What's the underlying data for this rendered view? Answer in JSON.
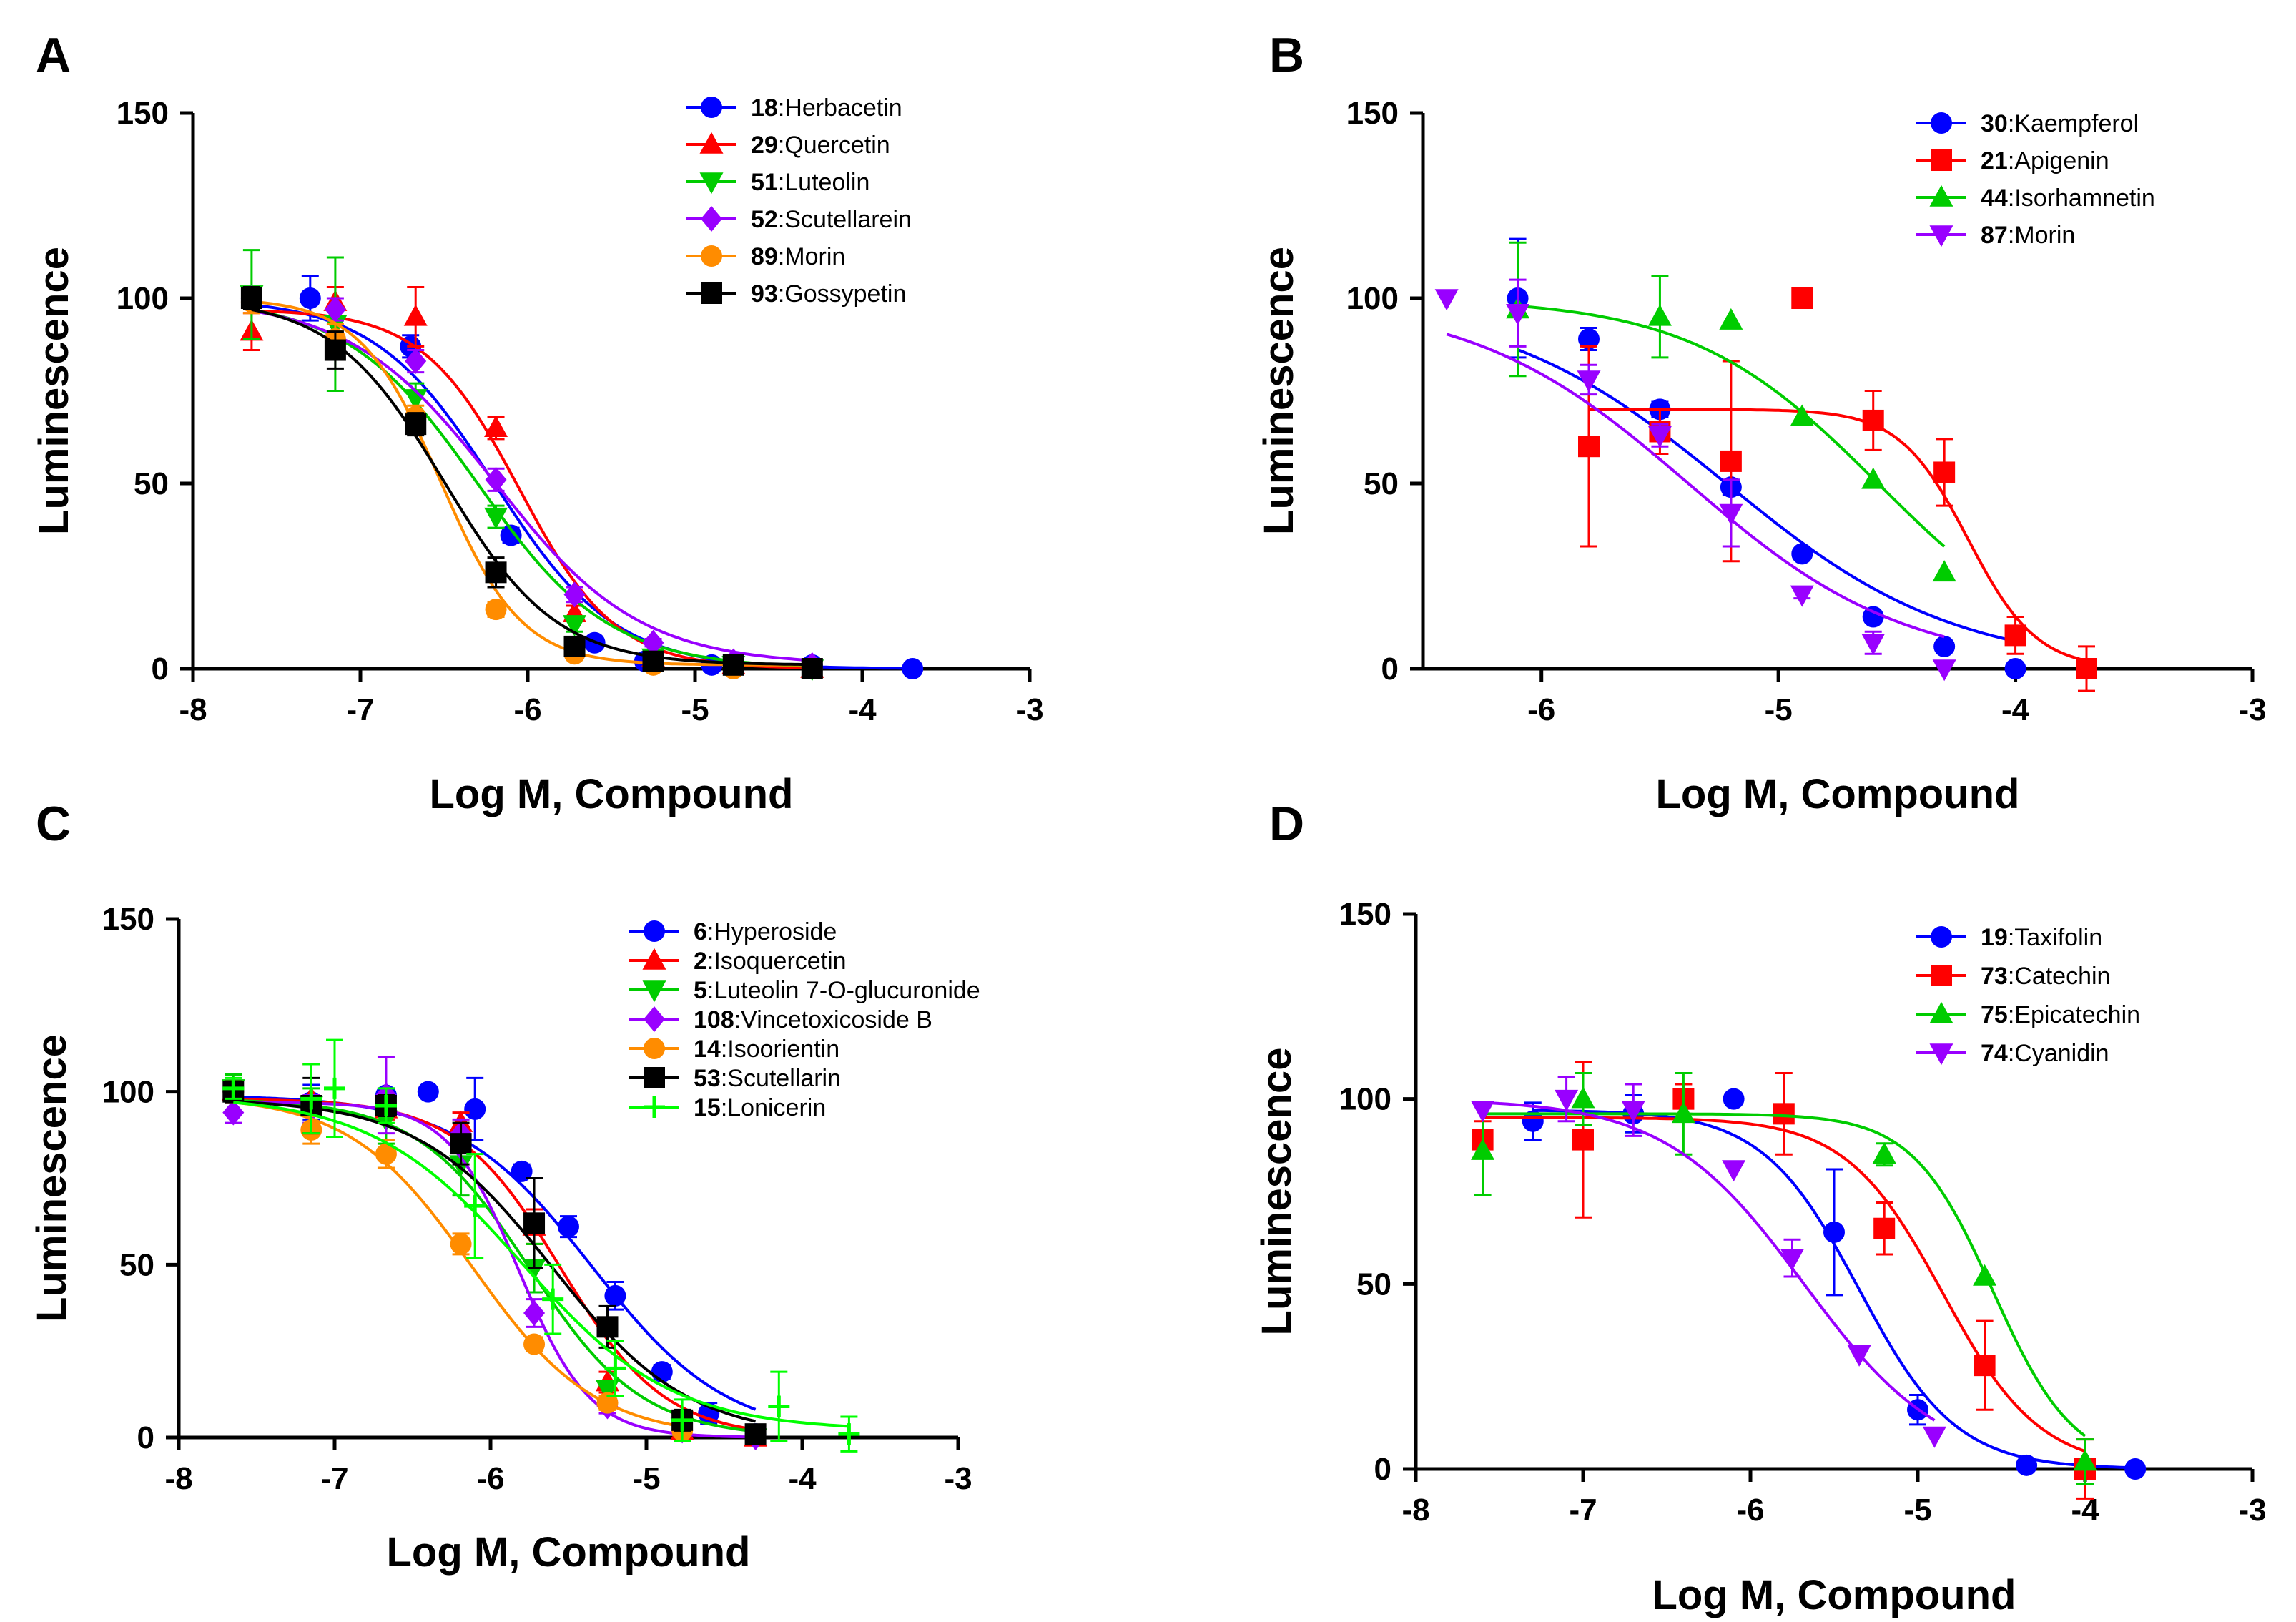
{
  "figure": {
    "panels": [
      "A",
      "B",
      "C",
      "D"
    ]
  },
  "chart_data": [
    {
      "panel": "A",
      "type": "line",
      "xlabel": "Log M, Compound",
      "ylabel": "Luminescence",
      "xlim": [
        -8,
        -3
      ],
      "ylim": [
        0,
        150
      ],
      "xticks": [
        "-8",
        "-7",
        "-6",
        "-5",
        "-4",
        "-3"
      ],
      "yticks": [
        "0",
        "50",
        "100",
        "150"
      ],
      "legend_position": "top-right",
      "series": [
        {
          "id": "18",
          "name": "Herbacetin",
          "color": "#0000ff",
          "marker": "circle",
          "x": [
            -7.65,
            -7.3,
            -6.7,
            -6.1,
            -5.6,
            -5.3,
            -4.9,
            -4.3,
            -3.7
          ],
          "y": [
            100,
            100,
            87,
            36,
            7,
            2,
            1,
            1,
            0
          ],
          "err": [
            0,
            6,
            3,
            2,
            1,
            1,
            1,
            1,
            0
          ],
          "fit": {
            "top": 100,
            "bottom": 0,
            "logec50": -6.2,
            "hill": 1.2
          }
        },
        {
          "id": "29",
          "name": "Quercetin",
          "color": "#ff0000",
          "marker": "triangle-up",
          "x": [
            -7.65,
            -7.15,
            -6.67,
            -6.19,
            -5.72,
            -5.25,
            -4.77,
            -4.3
          ],
          "y": [
            91,
            99,
            95,
            65,
            15,
            3,
            1,
            0
          ],
          "err": [
            5,
            4,
            8,
            3,
            2,
            1,
            1,
            0
          ],
          "fit": {
            "top": 97,
            "bottom": 0,
            "logec50": -6.05,
            "hill": 1.5
          }
        },
        {
          "id": "51",
          "name": "Luteolin",
          "color": "#00cc00",
          "marker": "triangle-down",
          "x": [
            -7.65,
            -7.15,
            -6.67,
            -6.19,
            -5.72,
            -5.25,
            -4.77,
            -4.3
          ],
          "y": [
            101,
            93,
            73,
            41,
            12,
            3,
            1,
            0
          ],
          "err": [
            12,
            18,
            4,
            3,
            2,
            1,
            1,
            0
          ],
          "fit": {
            "top": 100,
            "bottom": 0,
            "logec50": -6.3,
            "hill": 1.1
          }
        },
        {
          "id": "52",
          "name": "Scutellarein",
          "color": "#9900ff",
          "marker": "diamond",
          "x": [
            -7.65,
            -7.15,
            -6.67,
            -6.19,
            -5.72,
            -5.25,
            -4.77,
            -4.3
          ],
          "y": [
            100,
            97,
            83,
            51,
            20,
            7,
            2,
            1
          ],
          "err": [
            2,
            3,
            3,
            3,
            2,
            1,
            1,
            0
          ],
          "fit": {
            "top": 100,
            "bottom": 1,
            "logec50": -6.2,
            "hill": 1.0
          }
        },
        {
          "id": "89",
          "name": "Morin",
          "color": "#ff8c00",
          "marker": "circle",
          "x": [
            -7.65,
            -7.15,
            -6.67,
            -6.19,
            -5.72,
            -5.25,
            -4.77,
            -4.3
          ],
          "y": [
            99,
            89,
            68,
            16,
            4,
            1,
            0,
            0
          ],
          "err": [
            3,
            4,
            3,
            2,
            1,
            0,
            0,
            0
          ],
          "fit": {
            "top": 100,
            "bottom": 1,
            "logec50": -6.52,
            "hill": 1.8
          }
        },
        {
          "id": "93",
          "name": "Gossypetin",
          "color": "#000000",
          "marker": "square",
          "x": [
            -7.65,
            -7.15,
            -6.67,
            -6.19,
            -5.72,
            -5.25,
            -4.77,
            -4.3
          ],
          "y": [
            100,
            86,
            66,
            26,
            6,
            2,
            1,
            0
          ],
          "err": [
            3,
            5,
            3,
            4,
            2,
            1,
            1,
            0
          ],
          "fit": {
            "top": 100,
            "bottom": 1,
            "logec50": -6.5,
            "hill": 1.3
          }
        }
      ]
    },
    {
      "panel": "B",
      "type": "line",
      "xlabel": "Log M, Compound",
      "ylabel": "Luminescence",
      "xlim": [
        -6.5,
        -3
      ],
      "ylim": [
        0,
        150
      ],
      "xticks": [
        "-6",
        "-5",
        "-4",
        "-3"
      ],
      "yticks": [
        "0",
        "50",
        "100",
        "150"
      ],
      "legend_position": "top-right",
      "series": [
        {
          "id": "30",
          "name": "Kaempferol",
          "color": "#0000ff",
          "marker": "circle",
          "x": [
            -6.1,
            -5.8,
            -5.5,
            -5.2,
            -4.9,
            -4.6,
            -4.3,
            -4.0
          ],
          "y": [
            100,
            89,
            70,
            49,
            31,
            14,
            6,
            0
          ],
          "err": [
            16,
            3,
            2,
            2,
            1,
            1,
            1,
            0
          ],
          "fit": {
            "top": 100,
            "bottom": 0,
            "logec50": -5.22,
            "hill": 0.9
          }
        },
        {
          "id": "21",
          "name": "Apigenin",
          "color": "#ff0000",
          "marker": "square",
          "x": [
            -5.8,
            -5.5,
            -5.2,
            -4.9,
            -4.6,
            -4.3,
            -4.0,
            -3.7
          ],
          "y": [
            60,
            64,
            56,
            100,
            67,
            53,
            9,
            0
          ],
          "err": [
            27,
            6,
            27,
            0,
            8,
            9,
            5,
            6
          ],
          "fit": {
            "top": 70,
            "bottom": 0,
            "logec50": -4.2,
            "hill": 3.0
          }
        },
        {
          "id": "44",
          "name": "Isorhamnetin",
          "color": "#00cc00",
          "marker": "triangle-up",
          "x": [
            -6.1,
            -5.5,
            -5.2,
            -4.9,
            -4.6,
            -4.3
          ],
          "y": [
            97,
            95,
            94,
            68,
            51,
            26
          ],
          "err": [
            18,
            11,
            0,
            0,
            0,
            0
          ],
          "fit": {
            "top": 100,
            "bottom": 0,
            "logec50": -4.58,
            "hill": 1.1
          }
        },
        {
          "id": "87",
          "name": "Morin",
          "color": "#9900ff",
          "marker": "triangle-down",
          "x": [
            -6.4,
            -6.1,
            -5.8,
            -5.5,
            -5.2,
            -4.9,
            -4.6,
            -4.3
          ],
          "y": [
            100,
            96,
            78,
            63,
            42,
            20,
            7,
            0
          ],
          "err": [
            0,
            9,
            4,
            3,
            9,
            1,
            3,
            0
          ],
          "fit": {
            "top": 100,
            "bottom": 0,
            "logec50": -5.38,
            "hill": 0.95
          }
        }
      ]
    },
    {
      "panel": "C",
      "type": "line",
      "xlabel": "Log M, Compound",
      "ylabel": "Luminescence",
      "xlim": [
        -8,
        -3
      ],
      "ylim": [
        0,
        150
      ],
      "xticks": [
        "-8",
        "-7",
        "-6",
        "-5",
        "-4",
        "-3"
      ],
      "yticks": [
        "0",
        "50",
        "100",
        "150"
      ],
      "legend_position": "top-right",
      "series": [
        {
          "id": "6",
          "name": "Hyperoside",
          "color": "#0000ff",
          "marker": "circle",
          "x": [
            -7.65,
            -7.15,
            -6.67,
            -6.4,
            -6.1,
            -5.8,
            -5.5,
            -5.2,
            -4.9,
            -4.6,
            -4.3
          ],
          "y": [
            100,
            97,
            99,
            100,
            95,
            77,
            61,
            41,
            19,
            7,
            1
          ],
          "err": [
            0,
            5,
            2,
            0,
            9,
            2,
            3,
            4,
            2,
            3,
            2
          ],
          "fit": {
            "top": 99,
            "bottom": 0,
            "logec50": -5.35,
            "hill": 1.0
          }
        },
        {
          "id": "2",
          "name": "Isoquercetin",
          "color": "#ff0000",
          "marker": "triangle-up",
          "x": [
            -7.65,
            -7.15,
            -6.67,
            -6.19,
            -5.72,
            -5.25,
            -4.77,
            -4.3
          ],
          "y": [
            100,
            98,
            95,
            91,
            61,
            16,
            2,
            0
          ],
          "err": [
            3,
            10,
            3,
            3,
            5,
            3,
            1,
            0
          ],
          "fit": {
            "top": 98,
            "bottom": 0,
            "logec50": -5.55,
            "hill": 1.3
          }
        },
        {
          "id": "5",
          "name": "Luteolin 7-O-glucuronide",
          "color": "#00cc00",
          "marker": "triangle-down",
          "x": [
            -7.65,
            -7.15,
            -6.67,
            -6.19,
            -5.72,
            -5.25,
            -4.77,
            -4.3
          ],
          "y": [
            101,
            96,
            92,
            79,
            49,
            14,
            3,
            0
          ],
          "err": [
            4,
            5,
            7,
            9,
            7,
            2,
            2,
            0
          ],
          "fit": {
            "top": 98,
            "bottom": 0,
            "logec50": -5.75,
            "hill": 1.2
          }
        },
        {
          "id": "108",
          "name": "Vincetoxicoside B",
          "color": "#9900ff",
          "marker": "diamond",
          "x": [
            -7.65,
            -7.15,
            -6.67,
            -6.19,
            -5.72,
            -5.25,
            -4.77,
            -4.3
          ],
          "y": [
            94,
            95,
            99,
            88,
            36,
            9,
            2,
            0
          ],
          "err": [
            3,
            4,
            11,
            4,
            4,
            2,
            1,
            0
          ],
          "fit": {
            "top": 97,
            "bottom": 0,
            "logec50": -5.82,
            "hill": 1.9
          }
        },
        {
          "id": "14",
          "name": "Isoorientin",
          "color": "#ff8c00",
          "marker": "circle",
          "x": [
            -7.65,
            -7.15,
            -6.67,
            -6.19,
            -5.72,
            -5.25,
            -4.77
          ],
          "y": [
            100,
            89,
            82,
            56,
            27,
            10,
            2
          ],
          "err": [
            3,
            4,
            4,
            3,
            2,
            2,
            1
          ],
          "fit": {
            "top": 99,
            "bottom": 0,
            "logec50": -6.12,
            "hill": 1.1
          }
        },
        {
          "id": "53",
          "name": "Scutellarin",
          "color": "#000000",
          "marker": "square",
          "x": [
            -7.65,
            -7.15,
            -6.67,
            -6.19,
            -5.72,
            -5.25,
            -4.77,
            -4.3
          ],
          "y": [
            100,
            96,
            96,
            85,
            62,
            32,
            5,
            1
          ],
          "err": [
            3,
            8,
            3,
            6,
            13,
            6,
            3,
            1
          ],
          "fit": {
            "top": 98,
            "bottom": 0,
            "logec50": -5.6,
            "hill": 1.0
          }
        },
        {
          "id": "15",
          "name": "Lonicerin",
          "color": "#00ff00",
          "marker": "plus",
          "x": [
            -7.65,
            -7.15,
            -7.0,
            -6.67,
            -6.1,
            -5.6,
            -5.2,
            -4.77,
            -4.15,
            -3.7
          ],
          "y": [
            101,
            98,
            101,
            96,
            67,
            40,
            20,
            5,
            9,
            1
          ],
          "err": [
            3,
            10,
            14,
            5,
            15,
            10,
            8,
            6,
            10,
            5
          ],
          "fit": {
            "top": 99,
            "bottom": 2,
            "logec50": -5.8,
            "hill": 0.9
          }
        }
      ]
    },
    {
      "panel": "D",
      "type": "line",
      "xlabel": "Log M, Compound",
      "ylabel": "Luminescence",
      "xlim": [
        -8,
        -3
      ],
      "ylim": [
        0,
        150
      ],
      "xticks": [
        "-8",
        "-7",
        "-6",
        "-5",
        "-4",
        "-3"
      ],
      "yticks": [
        "0",
        "50",
        "100",
        "150"
      ],
      "legend_position": "top-right",
      "series": [
        {
          "id": "19",
          "name": "Taxifolin",
          "color": "#0000ff",
          "marker": "circle",
          "x": [
            -7.3,
            -6.7,
            -6.1,
            -5.5,
            -5.0,
            -4.35,
            -3.7
          ],
          "y": [
            94,
            96,
            100,
            64,
            16,
            1,
            0
          ],
          "err": [
            5,
            5,
            0,
            17,
            4,
            1,
            0
          ],
          "fit": {
            "top": 97,
            "bottom": 0,
            "logec50": -5.35,
            "hill": 1.5
          }
        },
        {
          "id": "73",
          "name": "Catechin",
          "color": "#ff0000",
          "marker": "square",
          "x": [
            -7.6,
            -7.0,
            -6.4,
            -5.8,
            -5.2,
            -4.6,
            -4.0
          ],
          "y": [
            89,
            89,
            100,
            96,
            65,
            28,
            0
          ],
          "err": [
            5,
            21,
            4,
            11,
            7,
            12,
            8
          ],
          "fit": {
            "top": 95,
            "bottom": 0,
            "logec50": -4.85,
            "hill": 1.5
          }
        },
        {
          "id": "75",
          "name": "Epicatechin",
          "color": "#00cc00",
          "marker": "triangle-up",
          "x": [
            -7.6,
            -7.0,
            -6.4,
            -5.2,
            -4.6,
            -4.0
          ],
          "y": [
            86,
            100,
            96,
            85,
            52,
            2
          ],
          "err": [
            12,
            7,
            11,
            3,
            0,
            6
          ],
          "fit": {
            "top": 96,
            "bottom": 0,
            "logec50": -4.55,
            "hill": 1.8
          }
        },
        {
          "id": "74",
          "name": "Cyanidin",
          "color": "#9900ff",
          "marker": "triangle-down",
          "x": [
            -7.6,
            -7.1,
            -6.7,
            -6.1,
            -5.75,
            -5.35,
            -4.9
          ],
          "y": [
            97,
            100,
            97,
            81,
            57,
            31,
            9
          ],
          "err": [
            0,
            6,
            7,
            0,
            5,
            0,
            0
          ],
          "fit": {
            "top": 100,
            "bottom": 0,
            "logec50": -5.68,
            "hill": 1.05
          }
        }
      ]
    }
  ]
}
